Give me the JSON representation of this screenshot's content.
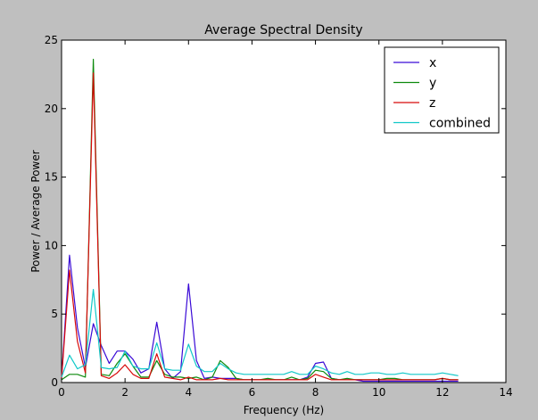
{
  "chart_data": {
    "type": "line",
    "title": "Average Spectral Density",
    "xlabel": "Frequency (Hz)",
    "ylabel": "Power / Average Power",
    "xlim": [
      0,
      14
    ],
    "ylim": [
      0,
      25
    ],
    "xticks": [
      0,
      2,
      4,
      6,
      8,
      10,
      12,
      14
    ],
    "yticks": [
      0,
      5,
      10,
      15,
      20,
      25
    ],
    "grid": false,
    "legend_position": "top-right",
    "x": [
      0,
      0.25,
      0.5,
      0.75,
      1.0,
      1.25,
      1.5,
      1.75,
      2.0,
      2.25,
      2.5,
      2.75,
      3.0,
      3.25,
      3.5,
      3.75,
      4.0,
      4.25,
      4.5,
      4.75,
      5.0,
      5.25,
      5.5,
      5.75,
      6.0,
      6.25,
      6.5,
      6.75,
      7.0,
      7.25,
      7.5,
      7.75,
      8.0,
      8.25,
      8.5,
      8.75,
      9.0,
      9.25,
      9.5,
      9.75,
      10.0,
      10.25,
      10.5,
      10.75,
      11.0,
      11.25,
      11.5,
      11.75,
      12.0,
      12.25,
      12.5
    ],
    "series": [
      {
        "name": "x",
        "color": "#3a0ad6",
        "values": [
          0.3,
          9.3,
          4.0,
          1.1,
          4.3,
          2.7,
          1.4,
          2.3,
          2.3,
          1.7,
          0.7,
          1.0,
          4.4,
          1.0,
          0.3,
          0.8,
          7.2,
          1.6,
          0.3,
          0.4,
          0.3,
          0.3,
          0.3,
          0.2,
          0.2,
          0.2,
          0.2,
          0.2,
          0.2,
          0.2,
          0.2,
          0.4,
          1.4,
          1.5,
          0.3,
          0.2,
          0.2,
          0.2,
          0.1,
          0.1,
          0.1,
          0.1,
          0.1,
          0.1,
          0.1,
          0.1,
          0.1,
          0.1,
          0.1,
          0.1,
          0.1
        ]
      },
      {
        "name": "y",
        "color": "#0d8a0d",
        "values": [
          0.2,
          0.6,
          0.6,
          0.4,
          23.6,
          0.6,
          0.5,
          1.4,
          2.1,
          1.2,
          0.4,
          0.4,
          1.6,
          0.6,
          0.4,
          0.4,
          0.3,
          0.4,
          0.2,
          0.4,
          1.6,
          1.1,
          0.3,
          0.2,
          0.2,
          0.2,
          0.3,
          0.2,
          0.2,
          0.4,
          0.2,
          0.3,
          0.9,
          0.8,
          0.3,
          0.2,
          0.3,
          0.2,
          0.2,
          0.2,
          0.2,
          0.3,
          0.3,
          0.2,
          0.2,
          0.2,
          0.2,
          0.2,
          0.3,
          0.2,
          0.2
        ]
      },
      {
        "name": "z",
        "color": "#d80a0a",
        "values": [
          0.3,
          8.2,
          3.0,
          0.7,
          22.6,
          0.5,
          0.3,
          0.7,
          1.3,
          0.6,
          0.3,
          0.3,
          2.1,
          0.4,
          0.3,
          0.2,
          0.4,
          0.2,
          0.2,
          0.2,
          0.3,
          0.2,
          0.2,
          0.2,
          0.2,
          0.2,
          0.2,
          0.2,
          0.2,
          0.2,
          0.2,
          0.2,
          0.6,
          0.4,
          0.2,
          0.2,
          0.2,
          0.2,
          0.2,
          0.2,
          0.2,
          0.2,
          0.2,
          0.2,
          0.2,
          0.2,
          0.2,
          0.2,
          0.3,
          0.2,
          0.2
        ]
      },
      {
        "name": "combined",
        "color": "#10c8c8",
        "values": [
          0.4,
          2.0,
          1.0,
          1.3,
          6.8,
          1.1,
          1.0,
          1.1,
          2.3,
          1.2,
          1.0,
          1.0,
          2.9,
          1.0,
          0.9,
          0.9,
          2.8,
          1.2,
          0.8,
          0.8,
          1.4,
          1.0,
          0.7,
          0.6,
          0.6,
          0.6,
          0.6,
          0.6,
          0.6,
          0.8,
          0.6,
          0.6,
          1.2,
          1.0,
          0.7,
          0.6,
          0.8,
          0.6,
          0.6,
          0.7,
          0.7,
          0.6,
          0.6,
          0.7,
          0.6,
          0.6,
          0.6,
          0.6,
          0.7,
          0.6,
          0.5
        ]
      }
    ]
  }
}
